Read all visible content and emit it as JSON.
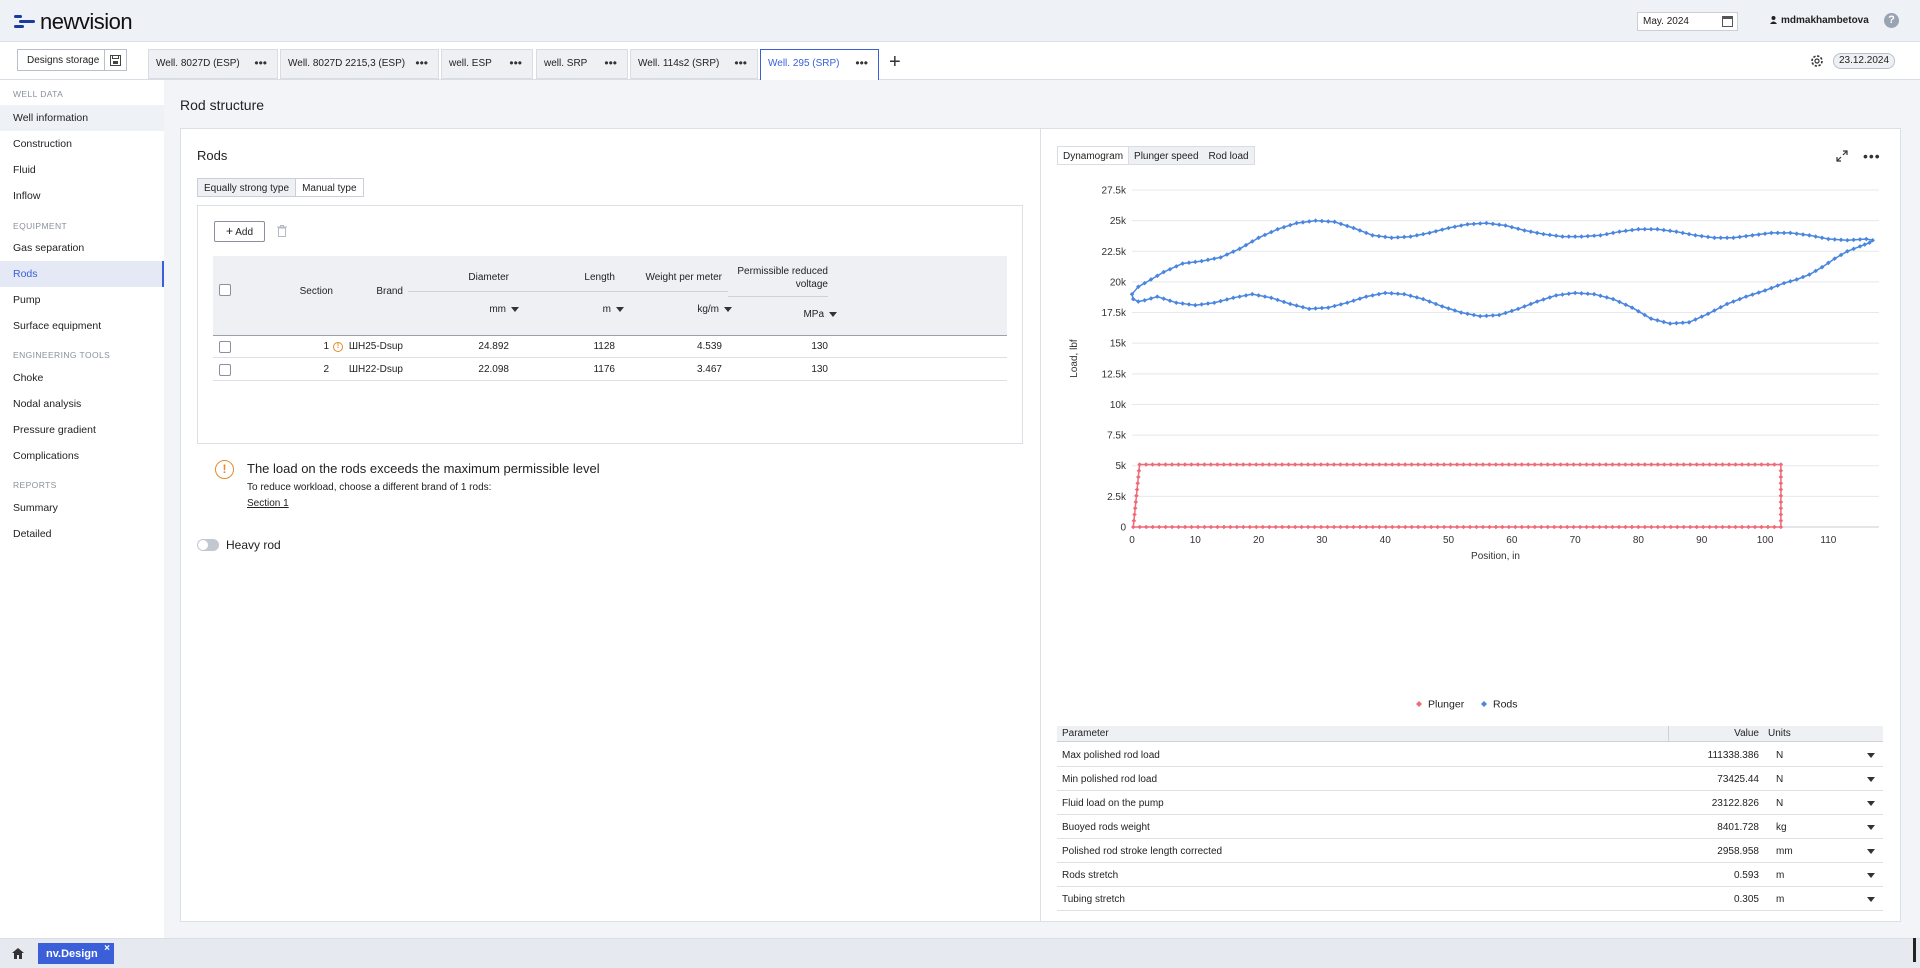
{
  "app": {
    "logo_text": "newvision",
    "period": "May. 2024",
    "user": "mdmakhambetova",
    "help": "?",
    "date_badge": "23.12.2024"
  },
  "tabs": {
    "designs_storage": "Designs storage",
    "items": [
      {
        "label": "Well. 8027D (ESP)",
        "active": false
      },
      {
        "label": "Well. 8027D 2215,3 (ESP)",
        "active": false
      },
      {
        "label": "well. ESP",
        "active": false
      },
      {
        "label": "well. SRP",
        "active": false
      },
      {
        "label": "Well. 114s2 (SRP)",
        "active": false
      },
      {
        "label": "Well. 295 (SRP)",
        "active": true
      }
    ],
    "more": "•••",
    "add": "+"
  },
  "sidebar": {
    "sections": [
      {
        "title": "WELL DATA",
        "items": [
          "Well information",
          "Construction",
          "Fluid",
          "Inflow"
        ]
      },
      {
        "title": "EQUIPMENT",
        "items": [
          "Gas separation",
          "Rods",
          "Pump",
          "Surface equipment"
        ]
      },
      {
        "title": "ENGINEERING TOOLS",
        "items": [
          "Choke",
          "Nodal analysis",
          "Pressure gradient",
          "Complications"
        ]
      },
      {
        "title": "REPORTS",
        "items": [
          "Summary",
          "Detailed"
        ]
      }
    ],
    "active": "Rods",
    "hovered": "Well information"
  },
  "main": {
    "title": "Rod structure",
    "rods_heading": "Rods",
    "type_toggle": [
      "Equally strong type",
      "Manual type"
    ],
    "type_selected": "Manual type",
    "add_label": "Add",
    "table": {
      "headers": {
        "section": "Section",
        "brand": "Brand",
        "diameter": "Diameter",
        "length": "Length",
        "weight": "Weight per meter",
        "voltage": "Permissible reduced voltage"
      },
      "units": {
        "diameter": "mm",
        "length": "m",
        "weight": "kg/m",
        "voltage": "MPa"
      },
      "rows": [
        {
          "section": "1",
          "brand": "ШН25-Dsup",
          "diameter": "24.892",
          "length": "1128",
          "weight": "4.539",
          "voltage": "130",
          "warn": true
        },
        {
          "section": "2",
          "brand": "ШН22-Dsup",
          "diameter": "22.098",
          "length": "1176",
          "weight": "3.467",
          "voltage": "130",
          "warn": false
        }
      ]
    },
    "warning": {
      "icon": "!",
      "title": "The load on the rods exceeds the maximum permissible level",
      "text": "To reduce workload, choose a different brand of 1 rods:",
      "link": "Section 1"
    },
    "heavy_rod_label": "Heavy rod",
    "heavy_rod_on": false
  },
  "chart_tabs": {
    "items": [
      "Dynamogram",
      "Plunger speed",
      "Rod load"
    ],
    "selected": "Dynamogram"
  },
  "chart_data": {
    "type": "scatter",
    "xlabel": "Position, in",
    "ylabel": "Load, lbf",
    "xlim": [
      0,
      118
    ],
    "ylim": [
      0,
      27500
    ],
    "xticks": [
      0,
      10,
      20,
      30,
      40,
      50,
      60,
      70,
      80,
      90,
      100,
      110
    ],
    "yticks": [
      0,
      2500,
      5000,
      7500,
      10000,
      12500,
      15000,
      17500,
      20000,
      22500,
      25000,
      27500
    ],
    "ytick_labels": [
      "0",
      "2.5k",
      "5k",
      "7.5k",
      "10k",
      "12.5k",
      "15k",
      "17.5k",
      "20k",
      "22.5k",
      "25k",
      "27.5k"
    ],
    "grid": true,
    "legend_position": "bottom",
    "series": [
      {
        "name": "Plunger",
        "color": "#ef6b78",
        "points": [
          [
            0.2,
            0
          ],
          [
            102.5,
            0
          ],
          [
            102.5,
            5100
          ],
          [
            1.2,
            5100
          ],
          [
            0.2,
            0
          ]
        ]
      },
      {
        "name": "Rods",
        "color": "#4a86e0",
        "points": [
          [
            0,
            19000
          ],
          [
            1,
            19600
          ],
          [
            3,
            20200
          ],
          [
            5,
            20800
          ],
          [
            8,
            21500
          ],
          [
            11,
            21700
          ],
          [
            14,
            22000
          ],
          [
            17,
            22700
          ],
          [
            20,
            23600
          ],
          [
            23,
            24300
          ],
          [
            26,
            24800
          ],
          [
            29,
            25000
          ],
          [
            32,
            24900
          ],
          [
            35,
            24400
          ],
          [
            38,
            23800
          ],
          [
            41,
            23600
          ],
          [
            44,
            23700
          ],
          [
            47,
            24000
          ],
          [
            50,
            24400
          ],
          [
            53,
            24700
          ],
          [
            56,
            24800
          ],
          [
            59,
            24600
          ],
          [
            62,
            24200
          ],
          [
            65,
            23900
          ],
          [
            68,
            23700
          ],
          [
            71,
            23700
          ],
          [
            74,
            23800
          ],
          [
            77,
            24100
          ],
          [
            80,
            24300
          ],
          [
            83,
            24300
          ],
          [
            86,
            24100
          ],
          [
            89,
            23800
          ],
          [
            92,
            23600
          ],
          [
            95,
            23600
          ],
          [
            98,
            23800
          ],
          [
            101,
            24000
          ],
          [
            104,
            24000
          ],
          [
            107,
            23800
          ],
          [
            110,
            23500
          ],
          [
            113,
            23400
          ],
          [
            116,
            23500
          ],
          [
            117,
            23400
          ],
          [
            116.5,
            23200
          ],
          [
            115,
            22900
          ],
          [
            113,
            22500
          ],
          [
            111,
            21900
          ],
          [
            109,
            21200
          ],
          [
            107,
            20600
          ],
          [
            105,
            20200
          ],
          [
            103,
            19900
          ],
          [
            100,
            19300
          ],
          [
            97,
            18800
          ],
          [
            94,
            18200
          ],
          [
            91,
            17400
          ],
          [
            88,
            16700
          ],
          [
            85,
            16600
          ],
          [
            82,
            17000
          ],
          [
            79,
            17900
          ],
          [
            76,
            18600
          ],
          [
            73,
            19000
          ],
          [
            70,
            19100
          ],
          [
            67,
            18900
          ],
          [
            64,
            18400
          ],
          [
            61,
            17800
          ],
          [
            58,
            17300
          ],
          [
            55,
            17200
          ],
          [
            52,
            17500
          ],
          [
            49,
            18000
          ],
          [
            46,
            18600
          ],
          [
            43,
            19000
          ],
          [
            40,
            19100
          ],
          [
            37,
            18800
          ],
          [
            34,
            18300
          ],
          [
            31,
            17900
          ],
          [
            28,
            17800
          ],
          [
            25,
            18200
          ],
          [
            22,
            18700
          ],
          [
            19,
            19000
          ],
          [
            16,
            18700
          ],
          [
            13,
            18300
          ],
          [
            10,
            18100
          ],
          [
            7,
            18300
          ],
          [
            4,
            18800
          ],
          [
            2,
            18500
          ],
          [
            1,
            18400
          ],
          [
            0.2,
            18600
          ],
          [
            0,
            19000
          ]
        ]
      }
    ]
  },
  "params": {
    "headers": {
      "parameter": "Parameter",
      "value": "Value",
      "units": "Units"
    },
    "rows": [
      {
        "name": "Max polished rod load",
        "value": "111338.386",
        "unit": "N"
      },
      {
        "name": "Min polished rod load",
        "value": "73425.44",
        "unit": "N"
      },
      {
        "name": "Fluid load on the pump",
        "value": "23122.826",
        "unit": "N"
      },
      {
        "name": "Buoyed rods weight",
        "value": "8401.728",
        "unit": "kg"
      },
      {
        "name": "Polished rod stroke length corrected",
        "value": "2958.958",
        "unit": "mm"
      },
      {
        "name": "Rods stretch",
        "value": "0.593",
        "unit": "m"
      },
      {
        "name": "Tubing stretch",
        "value": "0.305",
        "unit": "m"
      }
    ]
  },
  "footer": {
    "app_tab": "nv.Design",
    "close": "×"
  }
}
